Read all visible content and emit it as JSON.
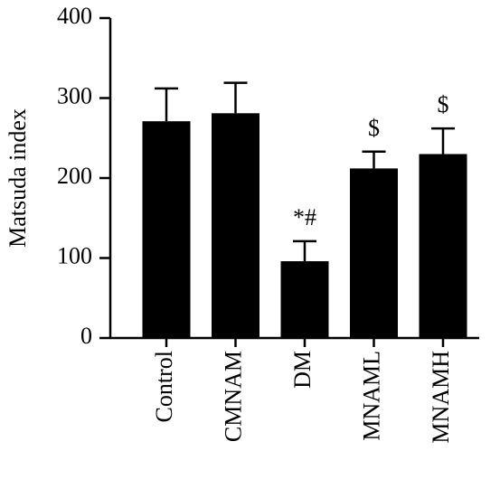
{
  "chart_data": {
    "type": "bar",
    "y_label": "Matsuda index",
    "categories": [
      "Control",
      "CMNAM",
      "DM",
      "MNAML",
      "MNAMH"
    ],
    "values": [
      271,
      281,
      96,
      212,
      230
    ],
    "errors": [
      41,
      38,
      25,
      21,
      32
    ],
    "annotations": [
      null,
      null,
      "*#",
      "$",
      "$"
    ],
    "color": "#000000",
    "ylim": [
      0,
      400
    ],
    "yticks": [
      0,
      100,
      200,
      300,
      400
    ]
  }
}
